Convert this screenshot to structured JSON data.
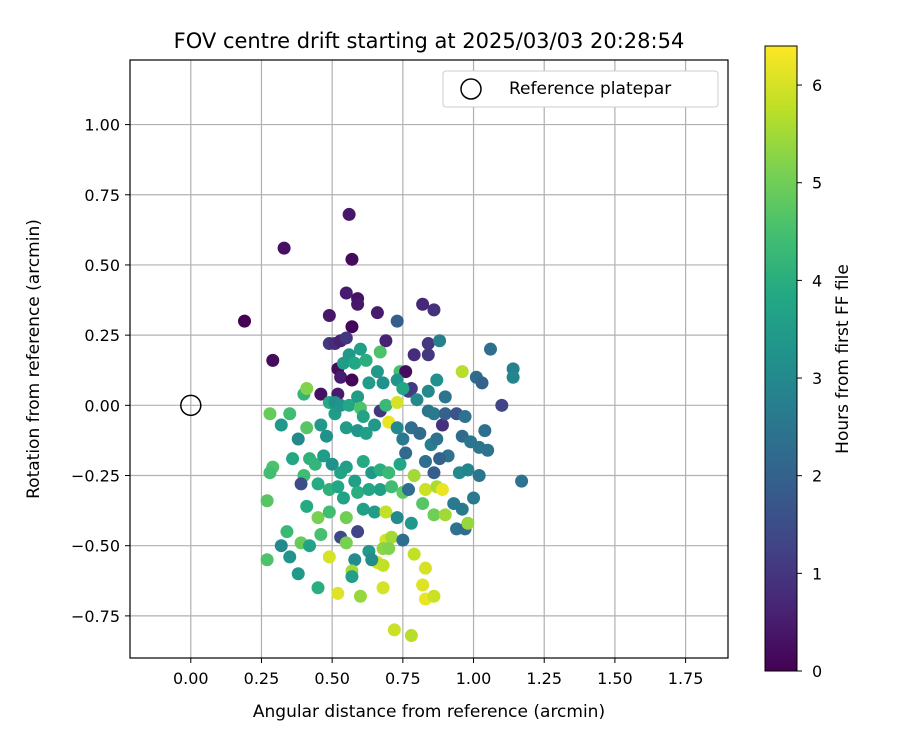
{
  "chart_data": {
    "type": "scatter",
    "title": "FOV centre drift starting at 2025/03/03 20:28:54",
    "xlabel": "Angular distance from reference (arcmin)",
    "ylabel": "Rotation from reference (arcmin)",
    "xlim": [
      -0.215,
      1.9
    ],
    "ylim": [
      -0.9,
      1.23
    ],
    "xticks": [
      "0.00",
      "0.25",
      "0.50",
      "0.75",
      "1.00",
      "1.25",
      "1.50",
      "1.75"
    ],
    "yticks": [
      "1.00",
      "0.75",
      "0.50",
      "0.25",
      "0.00",
      "−0.25",
      "−0.50",
      "−0.75"
    ],
    "grid": true,
    "legend": {
      "position": "top-right",
      "entries": [
        "Reference platepar"
      ]
    },
    "colorbar": {
      "label": "Hours from first FF file",
      "colormap": "viridis",
      "range": [
        0,
        6.4
      ],
      "ticks": [
        "0",
        "1",
        "2",
        "3",
        "4",
        "5",
        "6"
      ]
    },
    "reference_point": {
      "x": 0.0,
      "y": 0.0
    },
    "points": [
      [
        0.19,
        0.3,
        0.0
      ],
      [
        0.33,
        0.56,
        0.3
      ],
      [
        0.56,
        0.68,
        0.4
      ],
      [
        0.57,
        0.52,
        0.2
      ],
      [
        0.29,
        0.16,
        0.2
      ],
      [
        0.49,
        0.32,
        0.4
      ],
      [
        0.55,
        0.4,
        0.5
      ],
      [
        0.59,
        0.38,
        0.3
      ],
      [
        0.59,
        0.36,
        0.4
      ],
      [
        0.57,
        0.28,
        0.1
      ],
      [
        0.66,
        0.33,
        0.5
      ],
      [
        0.73,
        0.3,
        1.9
      ],
      [
        0.82,
        0.36,
        0.7
      ],
      [
        0.86,
        0.34,
        0.9
      ],
      [
        0.49,
        0.22,
        1.0
      ],
      [
        0.51,
        0.22,
        0.8
      ],
      [
        0.53,
        0.23,
        0.6
      ],
      [
        0.55,
        0.24,
        1.0
      ],
      [
        0.69,
        0.23,
        0.6
      ],
      [
        0.79,
        0.18,
        0.8
      ],
      [
        0.84,
        0.22,
        1.0
      ],
      [
        0.84,
        0.18,
        1.0
      ],
      [
        0.88,
        0.23,
        2.8
      ],
      [
        0.52,
        0.13,
        0.2
      ],
      [
        0.53,
        0.1,
        0.5
      ],
      [
        0.57,
        0.09,
        0.1
      ],
      [
        0.52,
        0.04,
        0.5
      ],
      [
        0.46,
        0.04,
        0.3
      ],
      [
        0.6,
        0.2,
        3.6
      ],
      [
        0.54,
        0.15,
        3.5
      ],
      [
        0.56,
        0.18,
        3.4
      ],
      [
        0.58,
        0.15,
        3.8
      ],
      [
        0.62,
        0.16,
        4.0
      ],
      [
        0.66,
        0.12,
        3.4
      ],
      [
        0.63,
        0.08,
        3.5
      ],
      [
        0.68,
        0.08,
        3.2
      ],
      [
        0.74,
        0.12,
        4.5
      ],
      [
        0.76,
        0.12,
        0.2
      ],
      [
        0.77,
        0.05,
        1.2
      ],
      [
        0.78,
        0.06,
        1.1
      ],
      [
        0.73,
        0.09,
        3.3
      ],
      [
        0.75,
        0.06,
        3.8
      ],
      [
        0.84,
        0.05,
        3.0
      ],
      [
        0.87,
        0.09,
        3.2
      ],
      [
        0.9,
        0.03,
        2.5
      ],
      [
        0.67,
        0.19,
        4.6
      ],
      [
        0.96,
        0.12,
        5.7
      ],
      [
        1.01,
        0.1,
        2.2
      ],
      [
        1.03,
        0.08,
        2.0
      ],
      [
        1.06,
        0.2,
        2.3
      ],
      [
        1.1,
        0.0,
        1.3
      ],
      [
        1.14,
        0.13,
        2.8
      ],
      [
        1.14,
        0.1,
        2.9
      ],
      [
        0.4,
        0.04,
        4.2
      ],
      [
        0.41,
        0.06,
        5.2
      ],
      [
        0.49,
        0.01,
        3.9
      ],
      [
        0.51,
        0.01,
        3.2
      ],
      [
        0.51,
        -0.03,
        3.5
      ],
      [
        0.53,
        0.0,
        3.3
      ],
      [
        0.56,
        0.0,
        3.8
      ],
      [
        0.59,
        0.03,
        3.5
      ],
      [
        0.6,
        -0.01,
        4.6
      ],
      [
        0.61,
        -0.04,
        3.7
      ],
      [
        0.67,
        -0.02,
        1.0
      ],
      [
        0.69,
        0.0,
        4.3
      ],
      [
        0.73,
        0.01,
        6.0
      ],
      [
        0.8,
        0.02,
        3.0
      ],
      [
        0.84,
        -0.02,
        2.5
      ],
      [
        0.86,
        -0.03,
        2.6
      ],
      [
        0.89,
        -0.07,
        0.9
      ],
      [
        0.9,
        -0.03,
        2.0
      ],
      [
        0.94,
        -0.03,
        1.6
      ],
      [
        0.97,
        -0.04,
        2.4
      ],
      [
        0.28,
        -0.03,
        4.9
      ],
      [
        0.32,
        -0.07,
        3.4
      ],
      [
        0.35,
        -0.03,
        4.4
      ],
      [
        0.38,
        -0.12,
        3.0
      ],
      [
        0.41,
        -0.08,
        4.7
      ],
      [
        0.46,
        -0.07,
        3.4
      ],
      [
        0.48,
        -0.11,
        3.2
      ],
      [
        0.55,
        -0.08,
        3.5
      ],
      [
        0.59,
        -0.09,
        3.3
      ],
      [
        0.62,
        -0.1,
        3.6
      ],
      [
        0.65,
        -0.07,
        3.4
      ],
      [
        0.7,
        -0.06,
        6.2
      ],
      [
        0.73,
        -0.08,
        3.0
      ],
      [
        0.75,
        -0.12,
        2.6
      ],
      [
        0.78,
        -0.08,
        2.3
      ],
      [
        0.81,
        -0.1,
        2.2
      ],
      [
        0.85,
        -0.14,
        2.7
      ],
      [
        0.87,
        -0.12,
        2.4
      ],
      [
        0.91,
        -0.18,
        2.4
      ],
      [
        0.96,
        -0.11,
        2.2
      ],
      [
        0.99,
        -0.13,
        2.5
      ],
      [
        1.04,
        -0.09,
        2.3
      ],
      [
        1.02,
        -0.15,
        2.5
      ],
      [
        1.05,
        -0.16,
        2.4
      ],
      [
        1.17,
        -0.27,
        2.4
      ],
      [
        0.36,
        -0.19,
        3.8
      ],
      [
        0.4,
        -0.25,
        4.4
      ],
      [
        0.42,
        -0.19,
        4.1
      ],
      [
        0.44,
        -0.21,
        4.2
      ],
      [
        0.47,
        -0.18,
        3.5
      ],
      [
        0.5,
        -0.21,
        3.2
      ],
      [
        0.53,
        -0.24,
        3.7
      ],
      [
        0.55,
        -0.22,
        3.6
      ],
      [
        0.58,
        -0.27,
        3.6
      ],
      [
        0.61,
        -0.2,
        3.9
      ],
      [
        0.64,
        -0.24,
        3.4
      ],
      [
        0.67,
        -0.23,
        4.0
      ],
      [
        0.7,
        -0.24,
        4.3
      ],
      [
        0.74,
        -0.21,
        3.8
      ],
      [
        0.76,
        -0.17,
        2.2
      ],
      [
        0.79,
        -0.25,
        5.5
      ],
      [
        0.83,
        -0.2,
        2.3
      ],
      [
        0.86,
        -0.24,
        1.9
      ],
      [
        0.88,
        -0.19,
        2.0
      ],
      [
        0.95,
        -0.24,
        3.0
      ],
      [
        0.98,
        -0.23,
        2.9
      ],
      [
        1.02,
        -0.25,
        2.5
      ],
      [
        0.29,
        -0.22,
        4.6
      ],
      [
        0.28,
        -0.24,
        4.4
      ],
      [
        0.39,
        -0.28,
        1.5
      ],
      [
        0.45,
        -0.28,
        3.9
      ],
      [
        0.49,
        -0.3,
        4.1
      ],
      [
        0.52,
        -0.29,
        3.8
      ],
      [
        0.54,
        -0.33,
        3.7
      ],
      [
        0.59,
        -0.31,
        4.0
      ],
      [
        0.63,
        -0.3,
        3.8
      ],
      [
        0.67,
        -0.3,
        3.6
      ],
      [
        0.71,
        -0.29,
        4.4
      ],
      [
        0.75,
        -0.31,
        4.8
      ],
      [
        0.77,
        -0.3,
        2.3
      ],
      [
        0.83,
        -0.3,
        5.9
      ],
      [
        0.87,
        -0.29,
        5.6
      ],
      [
        0.89,
        -0.3,
        6.2
      ],
      [
        0.93,
        -0.35,
        2.6
      ],
      [
        0.96,
        -0.37,
        2.6
      ],
      [
        1.0,
        -0.33,
        2.6
      ],
      [
        0.27,
        -0.34,
        4.7
      ],
      [
        0.41,
        -0.36,
        3.9
      ],
      [
        0.45,
        -0.4,
        5.1
      ],
      [
        0.49,
        -0.38,
        4.4
      ],
      [
        0.55,
        -0.4,
        5.0
      ],
      [
        0.61,
        -0.37,
        3.6
      ],
      [
        0.65,
        -0.38,
        3.5
      ],
      [
        0.69,
        -0.38,
        5.8
      ],
      [
        0.73,
        -0.4,
        3.0
      ],
      [
        0.78,
        -0.42,
        3.4
      ],
      [
        0.82,
        -0.35,
        4.7
      ],
      [
        0.86,
        -0.39,
        5.0
      ],
      [
        0.9,
        -0.39,
        5.5
      ],
      [
        0.94,
        -0.44,
        2.4
      ],
      [
        0.97,
        -0.44,
        2.2
      ],
      [
        0.98,
        -0.42,
        5.4
      ],
      [
        0.34,
        -0.45,
        4.3
      ],
      [
        0.39,
        -0.49,
        4.9
      ],
      [
        0.46,
        -0.46,
        4.5
      ],
      [
        0.53,
        -0.47,
        1.4
      ],
      [
        0.59,
        -0.45,
        1.3
      ],
      [
        0.69,
        -0.48,
        6.0
      ],
      [
        0.71,
        -0.47,
        5.5
      ],
      [
        0.75,
        -0.48,
        2.3
      ],
      [
        0.32,
        -0.5,
        3.0
      ],
      [
        0.35,
        -0.54,
        3.3
      ],
      [
        0.42,
        -0.5,
        3.7
      ],
      [
        0.49,
        -0.54,
        6.0
      ],
      [
        0.55,
        -0.49,
        5.1
      ],
      [
        0.58,
        -0.55,
        3.1
      ],
      [
        0.63,
        -0.52,
        3.4
      ],
      [
        0.68,
        -0.51,
        5.3
      ],
      [
        0.7,
        -0.51,
        5.2
      ],
      [
        0.27,
        -0.55,
        4.6
      ],
      [
        0.38,
        -0.6,
        3.4
      ],
      [
        0.45,
        -0.65,
        4.0
      ],
      [
        0.57,
        -0.59,
        5.5
      ],
      [
        0.57,
        -0.61,
        3.6
      ],
      [
        0.66,
        -0.56,
        5.9
      ],
      [
        0.68,
        -0.57,
        5.8
      ],
      [
        0.64,
        -0.55,
        3.1
      ],
      [
        0.79,
        -0.53,
        5.8
      ],
      [
        0.83,
        -0.58,
        6.0
      ],
      [
        0.52,
        -0.67,
        6.1
      ],
      [
        0.6,
        -0.68,
        5.4
      ],
      [
        0.68,
        -0.65,
        6.0
      ],
      [
        0.82,
        -0.64,
        6.1
      ],
      [
        0.83,
        -0.69,
        6.2
      ],
      [
        0.86,
        -0.68,
        5.9
      ],
      [
        0.72,
        -0.8,
        5.9
      ],
      [
        0.78,
        -0.82,
        5.7
      ]
    ]
  }
}
